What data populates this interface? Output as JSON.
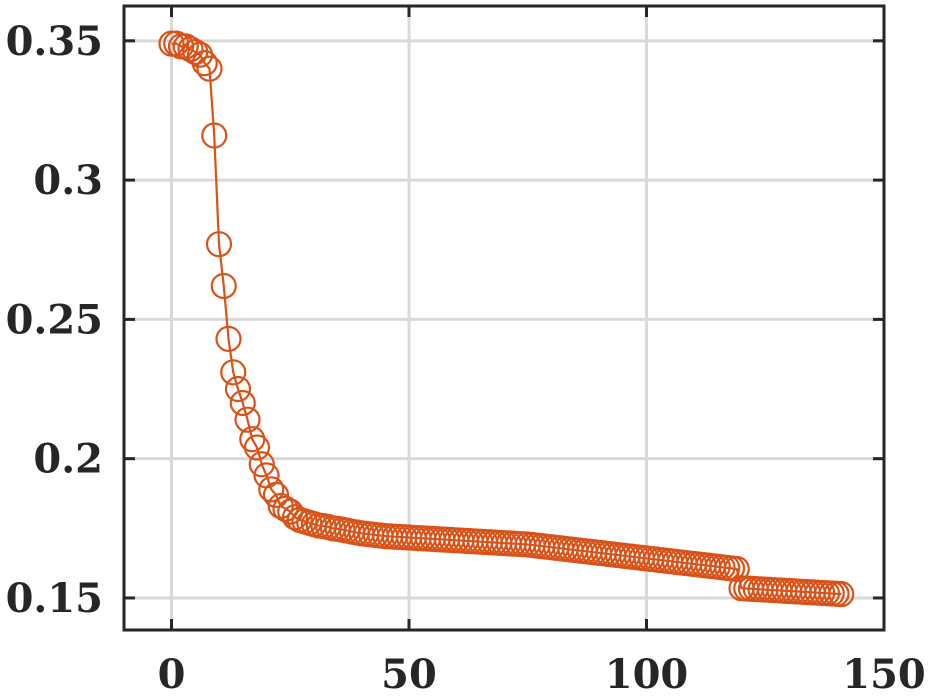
{
  "chart_data": {
    "type": "line",
    "title": "",
    "xlabel": "",
    "ylabel": "",
    "xlim": [
      -10,
      150
    ],
    "ylim": [
      0.1385,
      0.3625
    ],
    "x_ticks": [
      0,
      50,
      100,
      150
    ],
    "x_tick_labels": [
      "0",
      "50",
      "100",
      "150"
    ],
    "y_ticks": [
      0.15,
      0.2,
      0.25,
      0.3,
      0.35
    ],
    "y_tick_labels": [
      "0.15",
      "0.2",
      "0.25",
      "0.3",
      "0.35"
    ],
    "grid": true,
    "legend": "none",
    "colors": {
      "series": "#d95319",
      "axes": "#262626",
      "grid": "#d9d9d9"
    },
    "series": [
      {
        "marker": "open-circle",
        "x": [
          0,
          1,
          2,
          3,
          4,
          5,
          6,
          7,
          8,
          9,
          10,
          11,
          12,
          13,
          14,
          15,
          16,
          17,
          18,
          19,
          20,
          21,
          22,
          23,
          24,
          25,
          26,
          27,
          28,
          29,
          30,
          31,
          32,
          33,
          34,
          35,
          36,
          37,
          38,
          39,
          40,
          41,
          42,
          43,
          44,
          45,
          46,
          47,
          48,
          49,
          50,
          51,
          52,
          53,
          54,
          55,
          56,
          57,
          58,
          59,
          60,
          61,
          62,
          63,
          64,
          65,
          66,
          67,
          68,
          69,
          70,
          71,
          72,
          73,
          74,
          75,
          76,
          77,
          78,
          79,
          80,
          81,
          82,
          83,
          84,
          85,
          86,
          87,
          88,
          89,
          90,
          91,
          92,
          93,
          94,
          95,
          96,
          97,
          98,
          99,
          100,
          101,
          102,
          103,
          104,
          105,
          106,
          107,
          108,
          109,
          110,
          111,
          112,
          113,
          114,
          115,
          116,
          117,
          118,
          119,
          120,
          121,
          122,
          123,
          124,
          125,
          126,
          127,
          128,
          129,
          130,
          131,
          132,
          133,
          134,
          135,
          136,
          137,
          138,
          139,
          140,
          141
        ],
        "y": [
          0.349,
          0.349,
          0.348,
          0.348,
          0.347,
          0.346,
          0.345,
          0.342,
          0.34,
          0.316,
          0.277,
          0.262,
          0.243,
          0.231,
          0.225,
          0.22,
          0.214,
          0.207,
          0.204,
          0.198,
          0.194,
          0.189,
          0.187,
          0.183,
          0.182,
          0.181,
          0.179,
          0.178,
          0.1775,
          0.177,
          0.1765,
          0.176,
          0.1758,
          0.1755,
          0.175,
          0.1748,
          0.1745,
          0.1742,
          0.1738,
          0.1735,
          0.1732,
          0.173,
          0.1728,
          0.1726,
          0.1724,
          0.1722,
          0.1721,
          0.172,
          0.1719,
          0.1718,
          0.1717,
          0.1716,
          0.1715,
          0.1714,
          0.1713,
          0.1712,
          0.1711,
          0.171,
          0.1709,
          0.1708,
          0.1707,
          0.1706,
          0.1705,
          0.1704,
          0.1703,
          0.1702,
          0.1701,
          0.17,
          0.1699,
          0.1698,
          0.1697,
          0.1696,
          0.1695,
          0.1694,
          0.1693,
          0.1692,
          0.169,
          0.1688,
          0.1686,
          0.1684,
          0.1682,
          0.168,
          0.1678,
          0.1676,
          0.1674,
          0.1672,
          0.167,
          0.1668,
          0.1666,
          0.1664,
          0.1662,
          0.166,
          0.1658,
          0.1656,
          0.1654,
          0.1652,
          0.165,
          0.1648,
          0.1646,
          0.1644,
          0.1642,
          0.164,
          0.1638,
          0.1636,
          0.1634,
          0.1632,
          0.163,
          0.1628,
          0.1626,
          0.1624,
          0.1622,
          0.162,
          0.1618,
          0.1616,
          0.1614,
          0.1612,
          0.161,
          0.1608,
          0.1606,
          0.1604,
          0.1535,
          0.1534,
          0.1533,
          0.1532,
          0.1531,
          0.153,
          0.1529,
          0.1528,
          0.1527,
          0.1526,
          0.1525,
          0.1524,
          0.1523,
          0.1522,
          0.1521,
          0.152,
          0.1519,
          0.1518,
          0.1517,
          0.1516,
          0.1515,
          0.1514
        ]
      }
    ]
  }
}
